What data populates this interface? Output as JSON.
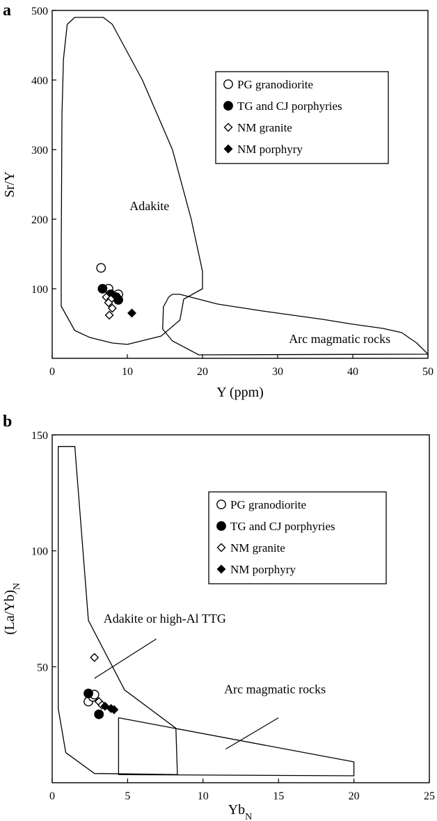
{
  "chart_data": [
    {
      "type": "scatter",
      "panel": "a",
      "xlabel": "Y (ppm)",
      "ylabel": "Sr/Y",
      "xlim": [
        0,
        50
      ],
      "ylim": [
        0,
        500
      ],
      "xticks": [
        "0",
        "10",
        "20",
        "30",
        "40",
        "50"
      ],
      "yticks": [
        "100",
        "200",
        "300",
        "400",
        "500"
      ],
      "legend_position": "top-right",
      "legend": [
        {
          "label": "PG granodiorite",
          "marker": "circle-open"
        },
        {
          "label": "TG and CJ porphyries",
          "marker": "circle-filled"
        },
        {
          "label": "NM granite",
          "marker": "diamond-open"
        },
        {
          "label": "NM porphyry",
          "marker": "diamond-filled"
        }
      ],
      "regions": [
        {
          "label": "Adakite",
          "label_at": [
            10.3,
            213
          ],
          "polygon": [
            [
              1.5,
              430
            ],
            [
              2,
              480
            ],
            [
              3,
              490
            ],
            [
              6.8,
              490
            ],
            [
              8,
              480
            ],
            [
              12,
              400
            ],
            [
              16,
              300
            ],
            [
              18.5,
              200
            ],
            [
              20,
              125
            ],
            [
              20,
              100
            ],
            [
              17.5,
              85
            ],
            [
              17,
              55
            ],
            [
              14.5,
              32
            ],
            [
              10,
              20
            ],
            [
              8,
              22
            ],
            [
              5,
              30
            ],
            [
              3,
              40
            ],
            [
              1.2,
              75
            ],
            [
              1.2,
              150
            ],
            [
              1.3,
              350
            ]
          ]
        },
        {
          "label": "Arc magmatic rocks",
          "label_at": [
            31.5,
            22
          ],
          "polygon": [
            [
              16,
              92
            ],
            [
              17,
              92
            ],
            [
              22,
              78
            ],
            [
              28,
              68
            ],
            [
              32,
              62
            ],
            [
              36,
              56
            ],
            [
              40,
              49
            ],
            [
              44,
              43
            ],
            [
              46.5,
              37
            ],
            [
              48.5,
              22
            ],
            [
              50,
              6
            ],
            [
              19.5,
              5
            ],
            [
              16,
              25
            ],
            [
              14.7,
              42
            ],
            [
              14.8,
              74
            ],
            [
              15.5,
              88
            ]
          ]
        }
      ],
      "series": [
        {
          "name": "PG granodiorite",
          "marker": "circle-open",
          "x": [
            6.5,
            7.5,
            8.8
          ],
          "y": [
            130,
            100,
            92
          ]
        },
        {
          "name": "TG and CJ porphyries",
          "marker": "circle-filled",
          "x": [
            6.7,
            7.8,
            8.5,
            8.8
          ],
          "y": [
            100,
            92,
            88,
            84
          ]
        },
        {
          "name": "NM granite",
          "marker": "diamond-open",
          "x": [
            7.2,
            7.8,
            7.5,
            8.0,
            7.6
          ],
          "y": [
            88,
            85,
            80,
            72,
            62
          ]
        },
        {
          "name": "NM porphyry",
          "marker": "diamond-filled",
          "x": [
            10.6
          ],
          "y": [
            65
          ]
        }
      ]
    },
    {
      "type": "scatter",
      "panel": "b",
      "xlabel": "Yb",
      "xlabel_sub": "N",
      "ylabel": "(La/Yb)",
      "ylabel_sub": "N",
      "xlim": [
        0,
        25
      ],
      "ylim": [
        0,
        150
      ],
      "xticks": [
        "0",
        "5",
        "10",
        "15",
        "20",
        "25"
      ],
      "yticks": [
        "50",
        "100",
        "150"
      ],
      "legend_position": "top-right",
      "legend": [
        {
          "label": "PG granodiorite",
          "marker": "circle-open"
        },
        {
          "label": "TG and CJ porphyries",
          "marker": "circle-filled"
        },
        {
          "label": "NM granite",
          "marker": "diamond-open"
        },
        {
          "label": "NM porphyry",
          "marker": "diamond-filled"
        }
      ],
      "regions": [
        {
          "label": "Adakite or high-Al TTG",
          "label_at": [
            3.4,
            69
          ],
          "polygon": [
            [
              0.4,
              145
            ],
            [
              1.5,
              145
            ],
            [
              2.4,
              70
            ],
            [
              4.8,
              40
            ],
            [
              8.2,
              23.5
            ],
            [
              8.3,
              3.5
            ],
            [
              2.8,
              4
            ],
            [
              0.9,
              13
            ],
            [
              0.4,
              32
            ]
          ]
        },
        {
          "label": "Arc magmatic rocks",
          "label_at": [
            11.4,
            38.5
          ],
          "polygon": [
            [
              4.4,
              28
            ],
            [
              20,
              9
            ],
            [
              20,
              3
            ],
            [
              4.4,
              3.5
            ]
          ]
        }
      ],
      "annotation_lines": [
        {
          "from": [
            2.8,
            45
          ],
          "to": [
            6.9,
            62
          ]
        },
        {
          "from": [
            11.5,
            14.5
          ],
          "to": [
            15,
            28
          ]
        }
      ],
      "series": [
        {
          "name": "PG granodiorite",
          "marker": "circle-open",
          "x": [
            2.4,
            2.7,
            2.8
          ],
          "y": [
            35,
            37,
            38
          ]
        },
        {
          "name": "TG and CJ porphyries",
          "marker": "circle-filled",
          "x": [
            2.4,
            3.1
          ],
          "y": [
            38.5,
            29.5
          ]
        },
        {
          "name": "NM granite",
          "marker": "diamond-open",
          "x": [
            2.8,
            3.1,
            3.3
          ],
          "y": [
            54,
            35,
            33.5
          ]
        },
        {
          "name": "NM porphyry",
          "marker": "diamond-filled",
          "x": [
            3.5,
            3.9,
            4.1
          ],
          "y": [
            33,
            32,
            31.5
          ]
        }
      ]
    }
  ]
}
